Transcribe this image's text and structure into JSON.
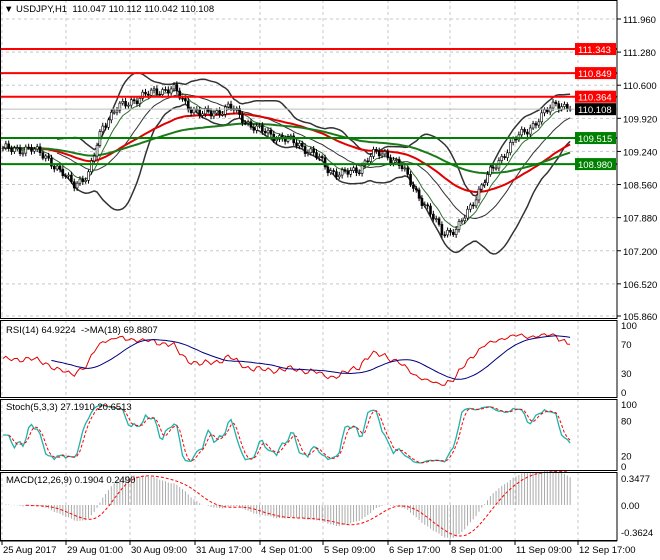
{
  "header": {
    "symbol": "USDJPY,H1",
    "ohlc": "110.047 110.112 110.042 110.108"
  },
  "chart_data": {
    "type": "candlestick",
    "price_axis": {
      "ticks": [
        "111.960",
        "111.280",
        "110.600",
        "109.920",
        "109.240",
        "108.560",
        "107.880",
        "107.200",
        "106.520",
        "105.860"
      ],
      "range": [
        105.86,
        111.96
      ]
    },
    "time_axis": {
      "ticks": [
        "25 Aug 2017",
        "29 Aug 01:00",
        "30 Aug 09:00",
        "31 Aug 17:00",
        "4 Sep 01:00",
        "5 Sep 09:00",
        "6 Sep 17:00",
        "8 Sep 01:00",
        "11 Sep 09:00",
        "12 Sep 17:00"
      ]
    },
    "close_approx": [
      109.27,
      109.3,
      109.27,
      109.17,
      108.8,
      108.6,
      108.7,
      109.78,
      110.1,
      110.28,
      110.38,
      110.5,
      110.52,
      110.19,
      109.99,
      110.05,
      110.15,
      109.89,
      109.68,
      109.58,
      109.48,
      109.37,
      109.17,
      108.86,
      108.76,
      108.86,
      109.17,
      109.2,
      108.95,
      108.5,
      108.0,
      107.6,
      107.6,
      108.14,
      108.65,
      109.06,
      109.45,
      109.7,
      109.95,
      110.25,
      110.11
    ],
    "levels": [
      {
        "value": "111.343",
        "color": "#ff0000"
      },
      {
        "value": "110.849",
        "color": "#ff0000"
      },
      {
        "value": "110.364",
        "color": "#ff0000"
      },
      {
        "value": "109.515",
        "color": "#008000"
      },
      {
        "value": "108.980",
        "color": "#008000"
      }
    ],
    "current_price": "110.108",
    "rsi": {
      "label": "RSI(14) 64.9224  ->MA(18) 69.8807",
      "ticks": [
        "100",
        "70",
        "30",
        "0"
      ]
    },
    "stoch": {
      "label": "Stoch(5,3,3) 27.1910 20.6513",
      "ticks": [
        "100",
        "80",
        "20",
        "0"
      ]
    },
    "macd": {
      "label": "MACD(12,26,9) 0.1904 0.2490",
      "ticks": [
        "0.3477",
        "0.00",
        "-0.3624"
      ]
    }
  }
}
